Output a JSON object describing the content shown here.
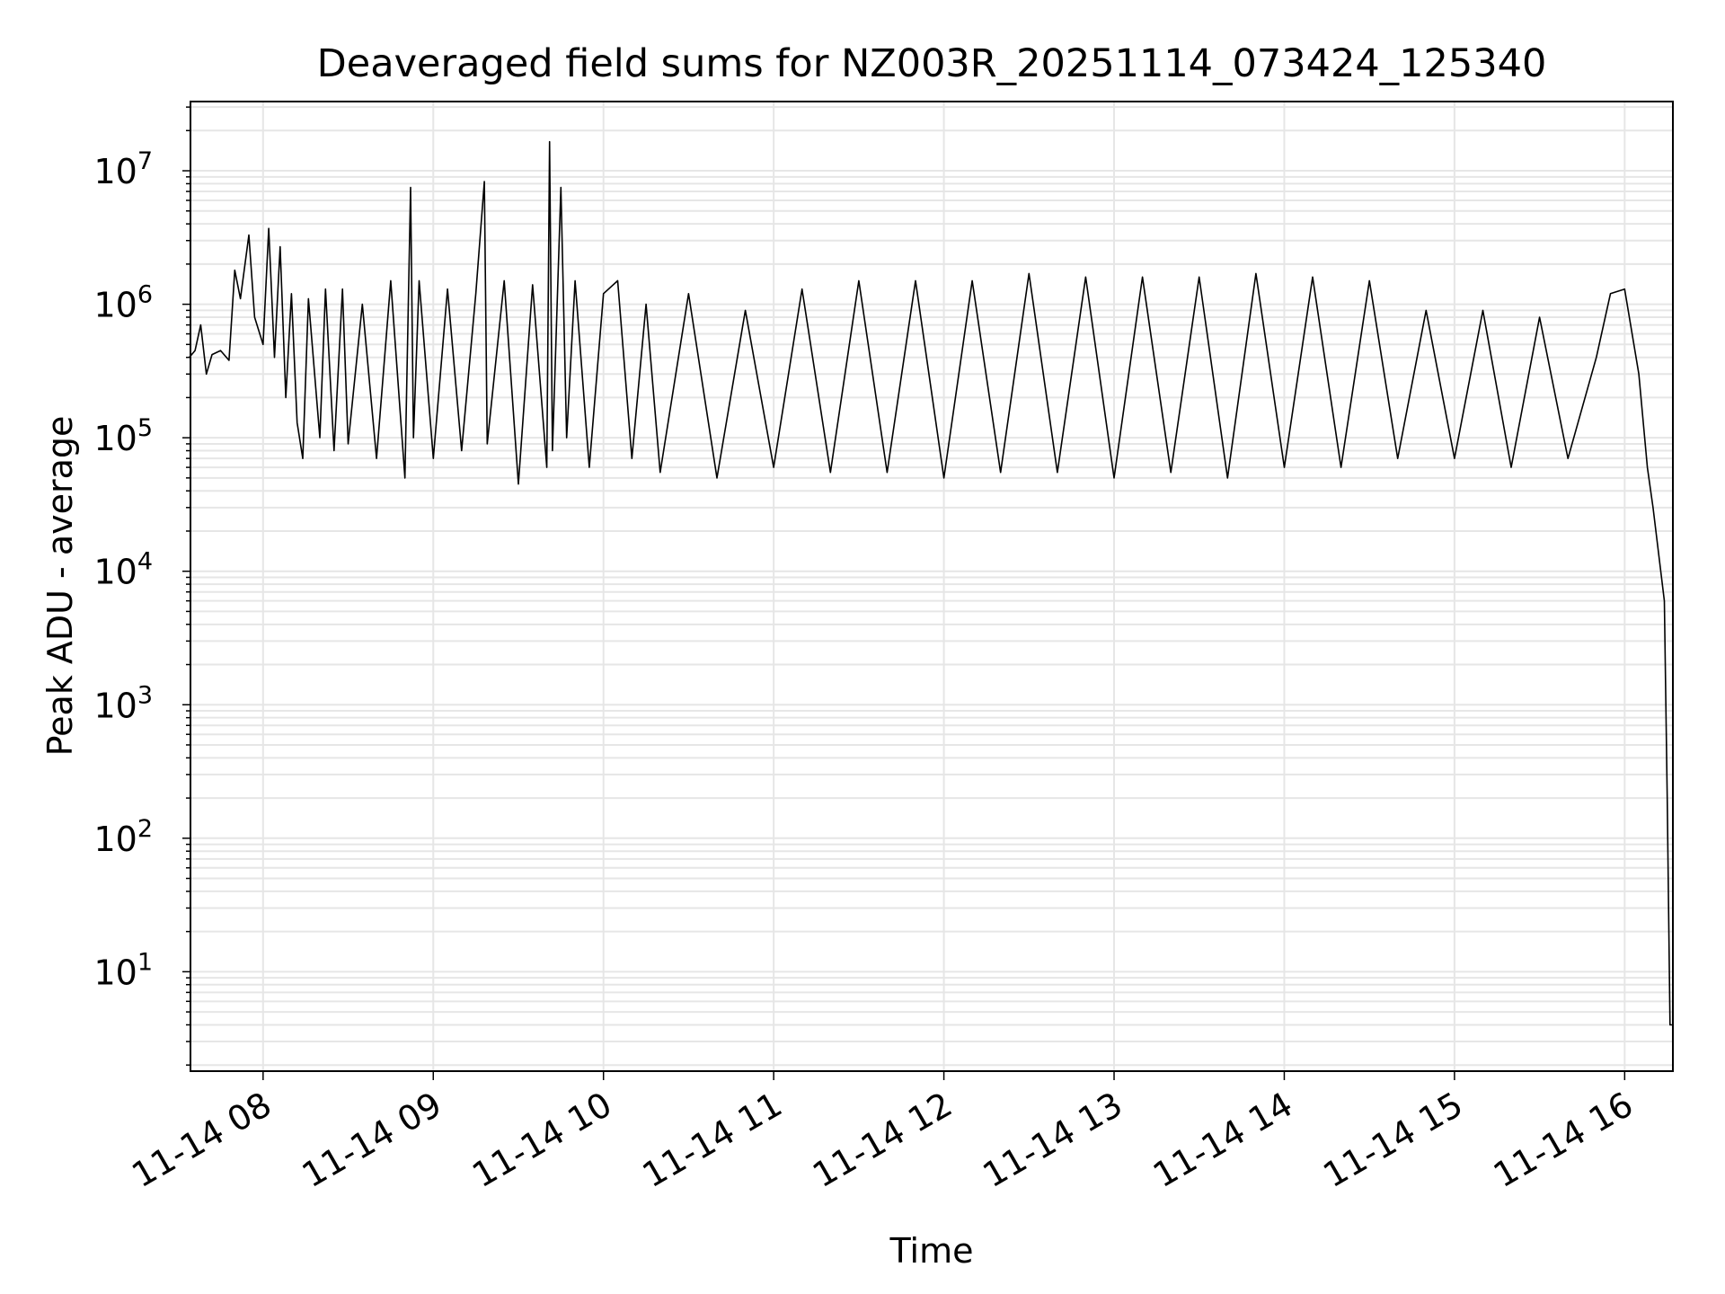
{
  "chart_data": {
    "type": "line",
    "title": "Deaveraged field sums for NZ003R_20251114_073424_125340",
    "xlabel": "Time",
    "ylabel": "Peak ADU - average",
    "x_scale": "time",
    "y_scale": "log",
    "xlim": [
      "2025-11-14T07:34:24",
      "2025-11-14T16:17:00"
    ],
    "ylim": [
      1.8,
      33000000
    ],
    "grid": true,
    "x_ticks": [
      "11-14 08",
      "11-14 09",
      "11-14 10",
      "11-14 11",
      "11-14 12",
      "11-14 13",
      "11-14 14",
      "11-14 15",
      "11-14 16"
    ],
    "x_tick_times": [
      "2025-11-14T08:00",
      "2025-11-14T09:00",
      "2025-11-14T10:00",
      "2025-11-14T11:00",
      "2025-11-14T12:00",
      "2025-11-14T13:00",
      "2025-11-14T14:00",
      "2025-11-14T15:00",
      "2025-11-14T16:00"
    ],
    "y_ticks": [
      {
        "base": "10",
        "exp": "1",
        "value": 10
      },
      {
        "base": "10",
        "exp": "2",
        "value": 100
      },
      {
        "base": "10",
        "exp": "3",
        "value": 1000
      },
      {
        "base": "10",
        "exp": "4",
        "value": 10000
      },
      {
        "base": "10",
        "exp": "5",
        "value": 100000
      },
      {
        "base": "10",
        "exp": "6",
        "value": 1000000
      },
      {
        "base": "10",
        "exp": "7",
        "value": 10000000
      }
    ],
    "series": [
      {
        "color": "#000000",
        "points": [
          [
            "2025-11-14T07:34",
            400000
          ],
          [
            "2025-11-14T07:36",
            450000
          ],
          [
            "2025-11-14T07:38",
            700000
          ],
          [
            "2025-11-14T07:40",
            300000
          ],
          [
            "2025-11-14T07:42",
            420000
          ],
          [
            "2025-11-14T07:45",
            450000
          ],
          [
            "2025-11-14T07:48",
            380000
          ],
          [
            "2025-11-14T07:50",
            1800000
          ],
          [
            "2025-11-14T07:52",
            1100000
          ],
          [
            "2025-11-14T07:55",
            3300000
          ],
          [
            "2025-11-14T07:57",
            800000
          ],
          [
            "2025-11-14T08:00",
            500000
          ],
          [
            "2025-11-14T08:02",
            3700000
          ],
          [
            "2025-11-14T08:04",
            400000
          ],
          [
            "2025-11-14T08:06",
            2700000
          ],
          [
            "2025-11-14T08:08",
            200000
          ],
          [
            "2025-11-14T08:10",
            1200000
          ],
          [
            "2025-11-14T08:12",
            130000
          ],
          [
            "2025-11-14T08:14",
            70000
          ],
          [
            "2025-11-14T08:16",
            1100000
          ],
          [
            "2025-11-14T08:20",
            100000
          ],
          [
            "2025-11-14T08:22",
            1300000
          ],
          [
            "2025-11-14T08:25",
            80000
          ],
          [
            "2025-11-14T08:28",
            1300000
          ],
          [
            "2025-11-14T08:30",
            90000
          ],
          [
            "2025-11-14T08:35",
            1000000
          ],
          [
            "2025-11-14T08:40",
            70000
          ],
          [
            "2025-11-14T08:45",
            1500000
          ],
          [
            "2025-11-14T08:50",
            50000
          ],
          [
            "2025-11-14T08:52",
            7500000
          ],
          [
            "2025-11-14T08:53",
            100000
          ],
          [
            "2025-11-14T08:55",
            1500000
          ],
          [
            "2025-11-14T09:00",
            70000
          ],
          [
            "2025-11-14T09:05",
            1300000
          ],
          [
            "2025-11-14T09:10",
            80000
          ],
          [
            "2025-11-14T09:15",
            1200000
          ],
          [
            "2025-11-14T09:18",
            8300000
          ],
          [
            "2025-11-14T09:19",
            90000
          ],
          [
            "2025-11-14T09:25",
            1500000
          ],
          [
            "2025-11-14T09:30",
            45000
          ],
          [
            "2025-11-14T09:35",
            1400000
          ],
          [
            "2025-11-14T09:40",
            60000
          ],
          [
            "2025-11-14T09:41",
            16500000
          ],
          [
            "2025-11-14T09:42",
            80000
          ],
          [
            "2025-11-14T09:45",
            7500000
          ],
          [
            "2025-11-14T09:47",
            100000
          ],
          [
            "2025-11-14T09:50",
            1500000
          ],
          [
            "2025-11-14T09:55",
            60000
          ],
          [
            "2025-11-14T10:00",
            1200000
          ],
          [
            "2025-11-14T10:05",
            1500000
          ],
          [
            "2025-11-14T10:10",
            70000
          ],
          [
            "2025-11-14T10:15",
            1000000
          ],
          [
            "2025-11-14T10:20",
            55000
          ],
          [
            "2025-11-14T10:30",
            1200000
          ],
          [
            "2025-11-14T10:40",
            50000
          ],
          [
            "2025-11-14T10:50",
            900000
          ],
          [
            "2025-11-14T11:00",
            60000
          ],
          [
            "2025-11-14T11:10",
            1300000
          ],
          [
            "2025-11-14T11:20",
            55000
          ],
          [
            "2025-11-14T11:30",
            1500000
          ],
          [
            "2025-11-14T11:40",
            55000
          ],
          [
            "2025-11-14T11:50",
            1500000
          ],
          [
            "2025-11-14T12:00",
            50000
          ],
          [
            "2025-11-14T12:10",
            1500000
          ],
          [
            "2025-11-14T12:20",
            55000
          ],
          [
            "2025-11-14T12:30",
            1700000
          ],
          [
            "2025-11-14T12:40",
            55000
          ],
          [
            "2025-11-14T12:50",
            1600000
          ],
          [
            "2025-11-14T13:00",
            50000
          ],
          [
            "2025-11-14T13:10",
            1600000
          ],
          [
            "2025-11-14T13:20",
            55000
          ],
          [
            "2025-11-14T13:30",
            1600000
          ],
          [
            "2025-11-14T13:40",
            50000
          ],
          [
            "2025-11-14T13:50",
            1700000
          ],
          [
            "2025-11-14T14:00",
            60000
          ],
          [
            "2025-11-14T14:10",
            1600000
          ],
          [
            "2025-11-14T14:20",
            60000
          ],
          [
            "2025-11-14T14:30",
            1500000
          ],
          [
            "2025-11-14T14:40",
            70000
          ],
          [
            "2025-11-14T14:50",
            900000
          ],
          [
            "2025-11-14T15:00",
            70000
          ],
          [
            "2025-11-14T15:10",
            900000
          ],
          [
            "2025-11-14T15:20",
            60000
          ],
          [
            "2025-11-14T15:30",
            800000
          ],
          [
            "2025-11-14T15:40",
            70000
          ],
          [
            "2025-11-14T15:50",
            400000
          ],
          [
            "2025-11-14T15:55",
            1200000
          ],
          [
            "2025-11-14T16:00",
            1300000
          ],
          [
            "2025-11-14T16:05",
            300000
          ],
          [
            "2025-11-14T16:08",
            60000
          ],
          [
            "2025-11-14T16:10",
            30000
          ],
          [
            "2025-11-14T16:14",
            6000
          ],
          [
            "2025-11-14T16:15",
            200
          ],
          [
            "2025-11-14T16:16",
            4
          ],
          [
            "2025-11-14T16:17",
            4
          ]
        ]
      }
    ]
  }
}
